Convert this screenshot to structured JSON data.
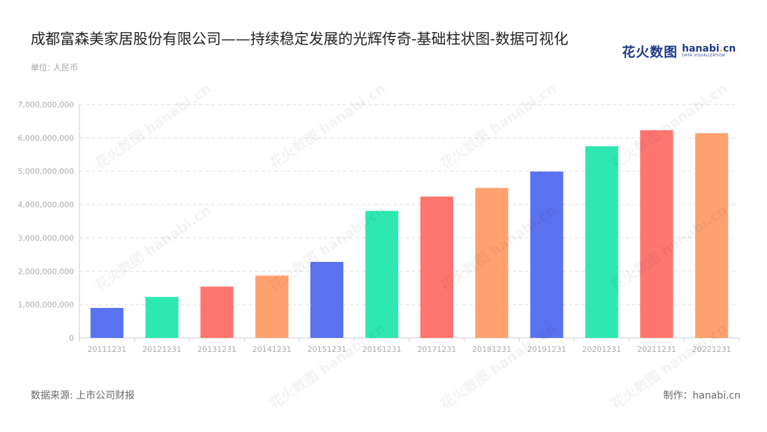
{
  "title": "成都富森美家居股份有限公司——持续稳定发展的光辉传奇-基础柱状图-数据可视化",
  "unit_label": "单位: 人民币",
  "logo": {
    "cn": "花火数图",
    "en_main": "hanabi",
    "en_dot": ".",
    "en_tld": "cn",
    "en_sub": "DATA VISUALIZATION"
  },
  "watermark_text": "花火数图 hanabi.cn",
  "footer": {
    "source": "数据来源: 上市公司财报",
    "credit": "制作：hanabi.cn"
  },
  "chart_data": {
    "type": "bar",
    "categories": [
      "20111231",
      "20121231",
      "20131231",
      "20141231",
      "20151231",
      "20161231",
      "20171231",
      "20181231",
      "20191231",
      "20201231",
      "20211231",
      "20221231"
    ],
    "values": [
      900000000,
      1230000000,
      1540000000,
      1870000000,
      2280000000,
      3810000000,
      4240000000,
      4500000000,
      4990000000,
      5750000000,
      6230000000,
      6140000000
    ],
    "colors": [
      "#5b72ee",
      "#2ee8b2",
      "#ff7670",
      "#ffa270",
      "#5b72ee",
      "#2ee8b2",
      "#ff7670",
      "#ffa270",
      "#5b72ee",
      "#2ee8b2",
      "#ff7670",
      "#ffa270"
    ],
    "ylim": [
      0,
      7000000000
    ],
    "yticks": [
      0,
      1000000000,
      2000000000,
      3000000000,
      4000000000,
      5000000000,
      6000000000,
      7000000000
    ],
    "ytick_labels": [
      "0",
      "1,000,000,000",
      "2,000,000,000",
      "3,000,000,000",
      "4,000,000,000",
      "5,000,000,000",
      "6,000,000,000",
      "7,000,000,000"
    ],
    "grid": true,
    "grid_style": "dashed",
    "axis_color": "#cccccc",
    "tick_label_color": "#aaaaaa"
  }
}
